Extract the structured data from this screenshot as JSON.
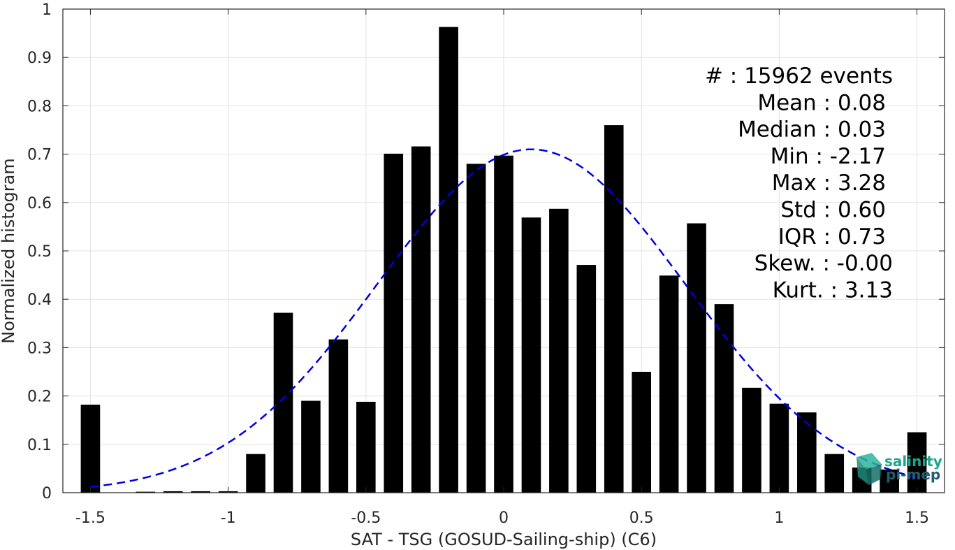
{
  "chart_data": {
    "type": "bar",
    "title": "",
    "xlabel": "SAT - TSG (GOSUD-Sailing-ship) (C6)",
    "ylabel": "Normalized histogram",
    "xlim": [
      -1.6,
      1.6
    ],
    "ylim": [
      0,
      1
    ],
    "grid": true,
    "x_ticks": [
      -1.5,
      -1,
      -0.5,
      0,
      0.5,
      1,
      1.5
    ],
    "x_tick_labels": [
      "-1.5",
      "-1",
      "-0.5",
      "0",
      "0.5",
      "1",
      "1.5"
    ],
    "y_ticks": [
      0,
      0.1,
      0.2,
      0.3,
      0.4,
      0.5,
      0.6,
      0.7,
      0.8,
      0.9,
      1
    ],
    "y_tick_labels": [
      "0",
      "0.1",
      "0.2",
      "0.3",
      "0.4",
      "0.5",
      "0.6",
      "0.7",
      "0.8",
      "0.9",
      "1"
    ],
    "bar_width": 0.07,
    "x": [
      -1.5,
      -1.4,
      -1.3,
      -1.2,
      -1.1,
      -1.0,
      -0.9,
      -0.8,
      -0.7,
      -0.6,
      -0.5,
      -0.4,
      -0.3,
      -0.2,
      -0.1,
      0.0,
      0.1,
      0.2,
      0.3,
      0.4,
      0.5,
      0.6,
      0.7,
      0.8,
      0.9,
      1.0,
      1.1,
      1.2,
      1.3,
      1.4,
      1.5
    ],
    "values": [
      0.182,
      0.0,
      0.002,
      0.003,
      0.003,
      0.003,
      0.08,
      0.372,
      0.19,
      0.317,
      0.188,
      0.701,
      0.716,
      0.963,
      0.68,
      0.697,
      0.569,
      0.587,
      0.471,
      0.76,
      0.25,
      0.449,
      0.557,
      0.39,
      0.217,
      0.184,
      0.166,
      0.08,
      0.052,
      0.048,
      0.125
    ],
    "fit_curve": {
      "style": "dashed",
      "color": "#0000e0",
      "mean": 0.1,
      "std": 0.56,
      "peak": 0.71,
      "x_range": [
        -1.5,
        1.5
      ]
    },
    "bar_color": "#000000",
    "annotations": [
      {
        "label": "#  : 15962 events"
      },
      {
        "label": "Mean : 0.08"
      },
      {
        "label": "Median : 0.03"
      },
      {
        "label": "Min : -2.17"
      },
      {
        "label": "Max : 3.28"
      },
      {
        "label": "Std : 0.60"
      },
      {
        "label": "IQR : 0.73"
      },
      {
        "label": "Skew. : -0.00"
      },
      {
        "label": "Kurt. : 3.13"
      }
    ]
  },
  "logo": {
    "line1": "salinity",
    "line2": "pi-mep",
    "color1": "#1aa88a",
    "color2": "#1f5f6e"
  }
}
